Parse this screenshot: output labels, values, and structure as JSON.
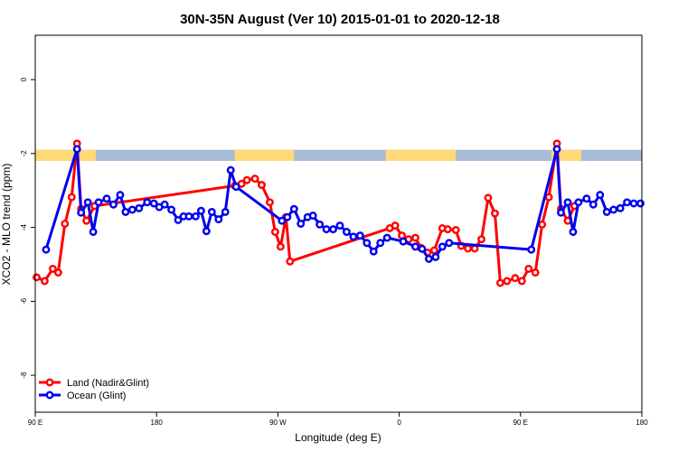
{
  "chart_data": {
    "type": "line",
    "title": "30N-35N August (Ver 10)   2015-01-01 to 2020-12-18",
    "xlabel": "Longitude (deg E)",
    "ylabel": "XCO2 - MLO trend (ppm)",
    "xlim": [
      90,
      540
    ],
    "ylim": [
      -9,
      1.2
    ],
    "grid": false,
    "legend_position": "bottom-left",
    "x_ticks": [
      {
        "value": 90,
        "label": "90 E"
      },
      {
        "value": 180,
        "label": "180"
      },
      {
        "value": 270,
        "label": "90 W"
      },
      {
        "value": 360,
        "label": "0"
      },
      {
        "value": 450,
        "label": "90 E"
      },
      {
        "value": 540,
        "label": "180"
      }
    ],
    "y_ticks": [
      {
        "value": 0,
        "label": "0"
      },
      {
        "value": -2,
        "label": "-2"
      },
      {
        "value": -4,
        "label": "-4"
      },
      {
        "value": -6,
        "label": "-6"
      },
      {
        "value": -8,
        "label": "-8"
      }
    ],
    "surface_band": {
      "y_top": -1.9,
      "y_bottom": -2.2,
      "land_color": "#ffd878",
      "ocean_color": "#a8bcd8",
      "land_ranges": [
        [
          90,
          135
        ],
        [
          238,
          282
        ],
        [
          350,
          402
        ],
        [
          473,
          495
        ]
      ]
    },
    "series": [
      {
        "name": "Land (Nadir&Glint)",
        "color": "#ff0000",
        "points": [
          [
            91,
            -5.35
          ],
          [
            97,
            -5.45
          ],
          [
            103,
            -5.12
          ],
          [
            107,
            -5.22
          ],
          [
            112,
            -3.9
          ],
          [
            117,
            -3.18
          ],
          [
            121,
            -1.73
          ],
          [
            124,
            -3.5
          ],
          [
            128,
            -3.82
          ],
          [
            134,
            -3.42
          ],
          [
            238,
            -2.87
          ],
          [
            243,
            -2.82
          ],
          [
            247,
            -2.72
          ],
          [
            253,
            -2.68
          ],
          [
            258,
            -2.85
          ],
          [
            264,
            -3.32
          ],
          [
            268,
            -4.12
          ],
          [
            272,
            -4.52
          ],
          [
            276,
            -3.72
          ],
          [
            279,
            -4.92
          ],
          [
            353,
            -4.02
          ],
          [
            357,
            -3.95
          ],
          [
            362,
            -4.22
          ],
          [
            367,
            -4.32
          ],
          [
            372,
            -4.28
          ],
          [
            376,
            -4.55
          ],
          [
            381,
            -4.68
          ],
          [
            386,
            -4.62
          ],
          [
            392,
            -4.02
          ],
          [
            396,
            -4.05
          ],
          [
            402,
            -4.07
          ],
          [
            406,
            -4.5
          ],
          [
            411,
            -4.57
          ],
          [
            416,
            -4.57
          ],
          [
            421,
            -4.32
          ],
          [
            426,
            -3.2
          ],
          [
            431,
            -3.62
          ],
          [
            435,
            -5.5
          ],
          [
            440,
            -5.45
          ],
          [
            446,
            -5.37
          ],
          [
            451,
            -5.45
          ],
          [
            456,
            -5.12
          ],
          [
            461,
            -5.22
          ],
          [
            466,
            -3.92
          ],
          [
            471,
            -3.18
          ],
          [
            477,
            -1.73
          ],
          [
            480,
            -3.5
          ],
          [
            485,
            -3.82
          ],
          [
            490,
            -3.42
          ]
        ]
      },
      {
        "name": "Ocean (Glint)",
        "color": "#0000ee",
        "points": [
          [
            98,
            -4.6
          ],
          [
            121,
            -1.88
          ],
          [
            124,
            -3.6
          ],
          [
            129,
            -3.32
          ],
          [
            133,
            -4.12
          ],
          [
            137,
            -3.32
          ],
          [
            143,
            -3.22
          ],
          [
            148,
            -3.38
          ],
          [
            153,
            -3.12
          ],
          [
            157,
            -3.58
          ],
          [
            162,
            -3.52
          ],
          [
            167,
            -3.48
          ],
          [
            173,
            -3.32
          ],
          [
            178,
            -3.35
          ],
          [
            182,
            -3.45
          ],
          [
            186,
            -3.38
          ],
          [
            191,
            -3.52
          ],
          [
            196,
            -3.8
          ],
          [
            200,
            -3.7
          ],
          [
            204,
            -3.7
          ],
          [
            209,
            -3.7
          ],
          [
            213,
            -3.55
          ],
          [
            217,
            -4.1
          ],
          [
            221,
            -3.58
          ],
          [
            226,
            -3.78
          ],
          [
            231,
            -3.58
          ],
          [
            235,
            -2.45
          ],
          [
            239,
            -2.9
          ],
          [
            273,
            -3.82
          ],
          [
            277,
            -3.72
          ],
          [
            282,
            -3.5
          ],
          [
            287,
            -3.9
          ],
          [
            292,
            -3.72
          ],
          [
            296,
            -3.68
          ],
          [
            301,
            -3.92
          ],
          [
            306,
            -4.05
          ],
          [
            311,
            -4.05
          ],
          [
            316,
            -3.95
          ],
          [
            321,
            -4.12
          ],
          [
            326,
            -4.25
          ],
          [
            331,
            -4.22
          ],
          [
            336,
            -4.42
          ],
          [
            341,
            -4.65
          ],
          [
            346,
            -4.42
          ],
          [
            351,
            -4.28
          ],
          [
            363,
            -4.38
          ],
          [
            372,
            -4.52
          ],
          [
            377,
            -4.58
          ],
          [
            382,
            -4.85
          ],
          [
            387,
            -4.8
          ],
          [
            392,
            -4.52
          ],
          [
            397,
            -4.42
          ],
          [
            458,
            -4.6
          ],
          [
            477,
            -1.88
          ],
          [
            480,
            -3.6
          ],
          [
            485,
            -3.32
          ],
          [
            489,
            -4.12
          ],
          [
            493,
            -3.32
          ],
          [
            499,
            -3.22
          ],
          [
            504,
            -3.38
          ],
          [
            509,
            -3.12
          ],
          [
            514,
            -3.58
          ],
          [
            519,
            -3.52
          ],
          [
            524,
            -3.48
          ],
          [
            529,
            -3.32
          ],
          [
            534,
            -3.35
          ],
          [
            539,
            -3.35
          ]
        ]
      }
    ]
  }
}
